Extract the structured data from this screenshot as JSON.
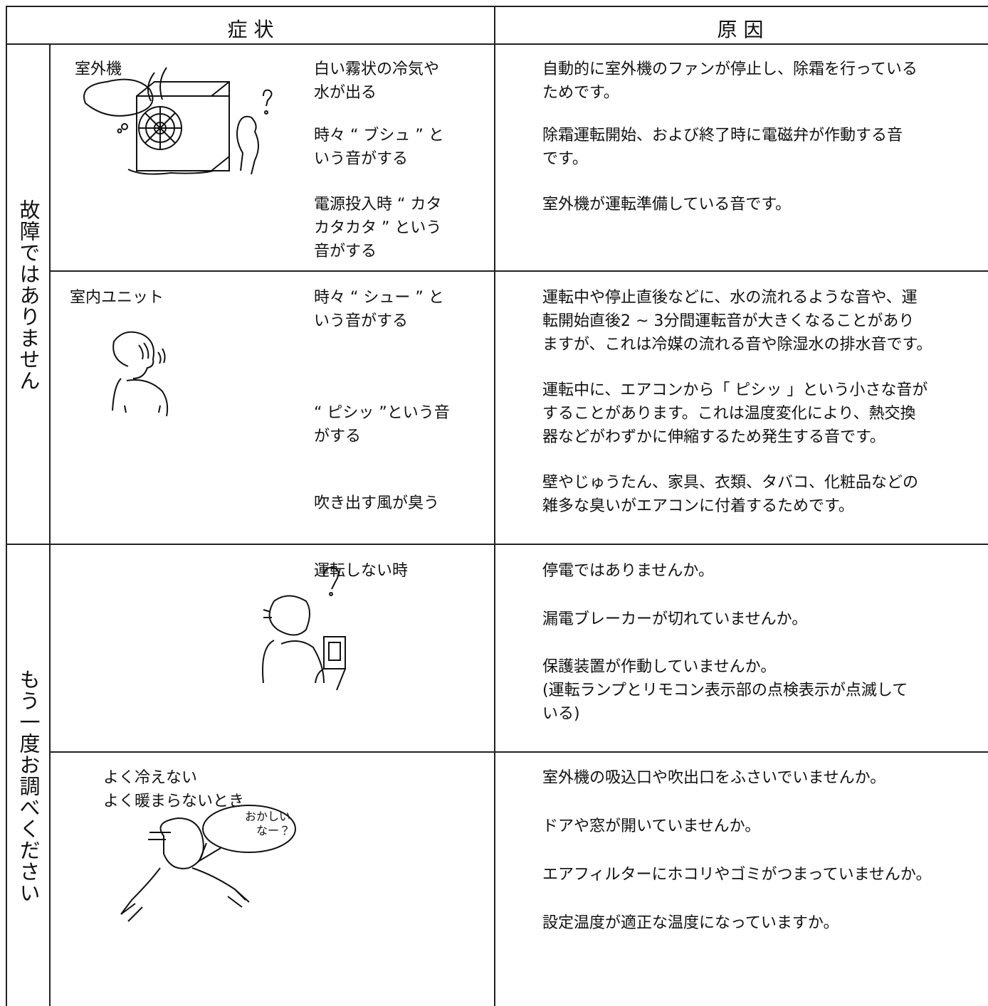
{
  "header": {
    "symptom": "症 状",
    "cause": "原 因"
  },
  "sections": [
    {
      "label": "故障ではありません",
      "rows": [
        {
          "unit": "室外機",
          "symptoms": [
            "白い霧状の冷気や\n水が出る",
            "時々 “ ブシュ ” と\nいう音がする",
            "電源投入時 “ カタ\nカタカタ ” という\n音がする"
          ],
          "causes": [
            "自動的に室外機のファンが停止し、除霜を行っている\nためです。",
            "除霜運転開始、および終了時に電磁弁が作動する音\nです。",
            "室外機が運転準備している音です。"
          ]
        },
        {
          "unit": "室内ユニット",
          "symptoms": [
            "時々 “ シュー ” と\nいう音がする",
            "“ ピシッ ”という音\nがする",
            "吹き出す風が臭う"
          ],
          "causes": [
            "運転中や停止直後などに、水の流れるような音や、運\n転開始直後2 ~ 3分間運転音が大きくなることがあり\nますが、これは冷媒の流れる音や除湿水の排水音です。",
            "運転中に、エアコンから「 ピシッ 」という小さな音が\nすることがあります。これは温度変化により、熱交換\n器などがわずかに伸縮するため発生する音です。",
            "壁やじゅうたん、家具、衣類、タバコ、化粧品などの\n雑多な臭いがエアコンに付着するためです。"
          ]
        }
      ]
    },
    {
      "label": "もう一度お調べください",
      "rows": [
        {
          "symptoms": [
            "運転しない時"
          ],
          "causes": [
            "停電ではありませんか。",
            "漏電ブレーカーが切れていませんか。",
            "保護装置が作動していませんか。\n(運転ランプとリモコン表示部の点検表示が点滅して\nいる)"
          ]
        },
        {
          "symptoms": [
            "よく冷えない\nよく暖まらないとき"
          ],
          "speech": "おかしい\nなー？",
          "causes": [
            "室外機の吸込口や吹出口をふさいでいませんか。",
            "ドアや窓が開いていませんか。",
            "エアフィルターにホコリやゴミがつまっていませんか。",
            "設定温度が適正な温度になっていますか。"
          ]
        }
      ]
    }
  ]
}
